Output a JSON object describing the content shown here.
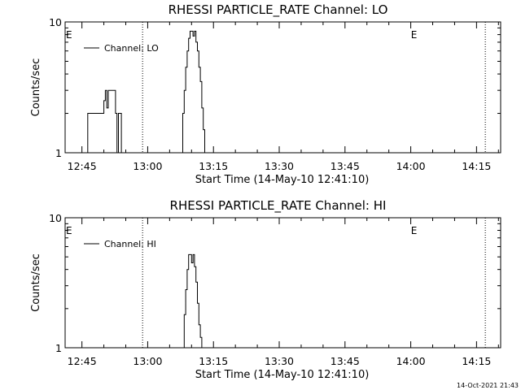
{
  "footer": {
    "timestamp": "14-Oct-2021 21:43"
  },
  "chart_data": [
    {
      "type": "line",
      "title": "RHESSI PARTICLE_RATE Channel: LO",
      "xlabel": "Start Time (14-May-10 12:41:10)",
      "ylabel": "Counts/sec",
      "y_scale": "log",
      "ylim": [
        1,
        10
      ],
      "y_tick_labels": [
        "1",
        "10"
      ],
      "xlim": [
        "12:41:10",
        "14:20:30"
      ],
      "x_tick_labels": [
        "12:45",
        "13:00",
        "13:15",
        "13:30",
        "13:45",
        "14:00",
        "14:15"
      ],
      "legend": {
        "position": "top-left",
        "entries": [
          "Channel: LO"
        ]
      },
      "markers": [
        {
          "label": "E",
          "time": "12:41:10"
        },
        {
          "label": "E",
          "time": "13:59:50"
        }
      ],
      "dotted_lines": [
        "12:58:50",
        "14:17:00"
      ],
      "series": [
        {
          "name": "Channel: LO",
          "x": [
            "12:46:10",
            "12:46:20",
            "12:49:40",
            "12:50:00",
            "12:50:20",
            "12:50:40",
            "12:51:00",
            "12:51:20",
            "12:51:40",
            "12:52:00",
            "12:52:40",
            "12:53:00",
            "12:53:20",
            "12:53:40",
            "12:54:00",
            "12:54:20",
            "13:07:40",
            "13:08:00",
            "13:08:20",
            "13:08:40",
            "13:09:00",
            "13:09:20",
            "13:09:40",
            "13:10:00",
            "13:10:20",
            "13:10:40",
            "13:11:00",
            "13:11:20",
            "13:11:40",
            "13:12:00",
            "13:12:20",
            "13:12:40",
            "13:13:00",
            "13:13:20"
          ],
          "y": [
            1,
            2,
            2,
            2.5,
            3,
            2.2,
            3,
            3,
            3,
            3,
            2,
            1,
            2,
            2,
            1,
            1,
            1,
            2,
            3,
            4.5,
            6,
            7.5,
            8.5,
            8.5,
            7.8,
            8.5,
            7,
            6,
            4.5,
            3.5,
            2.2,
            1.5,
            1,
            1
          ]
        }
      ]
    },
    {
      "type": "line",
      "title": "RHESSI PARTICLE_RATE Channel: HI",
      "xlabel": "Start Time (14-May-10 12:41:10)",
      "ylabel": "Counts/sec",
      "y_scale": "log",
      "ylim": [
        1,
        10
      ],
      "y_tick_labels": [
        "1",
        "10"
      ],
      "xlim": [
        "12:41:10",
        "14:20:30"
      ],
      "x_tick_labels": [
        "12:45",
        "13:00",
        "13:15",
        "13:30",
        "13:45",
        "14:00",
        "14:15"
      ],
      "legend": {
        "position": "top-left",
        "entries": [
          "Channel: HI"
        ]
      },
      "markers": [
        {
          "label": "E",
          "time": "12:41:10"
        },
        {
          "label": "E",
          "time": "13:59:50"
        }
      ],
      "dotted_lines": [
        "12:58:50",
        "14:17:00"
      ],
      "series": [
        {
          "name": "Channel: HI",
          "x": [
            "13:08:00",
            "13:08:20",
            "13:08:40",
            "13:09:00",
            "13:09:20",
            "13:09:40",
            "13:10:00",
            "13:10:20",
            "13:10:40",
            "13:11:00",
            "13:11:20",
            "13:11:40",
            "13:12:00",
            "13:12:20",
            "13:12:40",
            "13:13:00"
          ],
          "y": [
            1,
            1.8,
            2.8,
            4,
            5.2,
            5.2,
            4.5,
            5.2,
            4.2,
            3.2,
            2.2,
            1.5,
            1.2,
            1,
            1,
            1
          ]
        }
      ]
    }
  ]
}
